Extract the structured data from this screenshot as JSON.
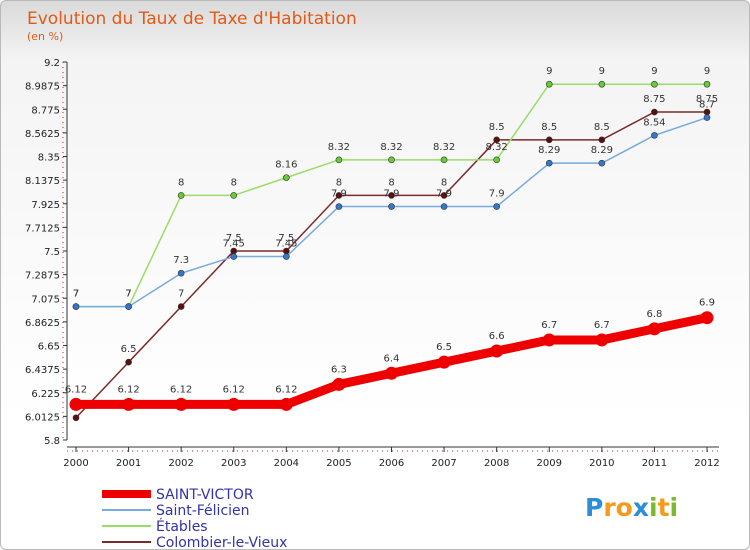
{
  "chart_data": {
    "type": "line",
    "title": "Evolution du Taux de Taxe d'Habitation",
    "subtitle": "(en %)",
    "xlabel": "",
    "ylabel": "",
    "x": [
      "2000",
      "2001",
      "2002",
      "2003",
      "2004",
      "2005",
      "2006",
      "2007",
      "2008",
      "2009",
      "2010",
      "2011",
      "2012"
    ],
    "y_ticks": [
      "5.8",
      "6.0125",
      "6.225",
      "6.4375",
      "6.65",
      "6.8625",
      "7.075",
      "7.2875",
      "7.5",
      "7.7125",
      "7.925",
      "8.1375",
      "8.35",
      "8.5625",
      "8.775",
      "8.9875",
      "9.2"
    ],
    "ylim": [
      5.8,
      9.2
    ],
    "grid": false,
    "legend_position": "bottom-left",
    "series": [
      {
        "name": "Colombier-le-Vieux",
        "color": "#7b2a2a",
        "marker_color": "#5a0f0f",
        "values": [
          6.0,
          6.5,
          7.0,
          7.5,
          7.5,
          8.0,
          8.0,
          8.0,
          8.5,
          8.5,
          8.5,
          8.75,
          8.75
        ],
        "labels": [
          "",
          "6.5",
          "7",
          "7.5",
          "7.5",
          "8",
          "8",
          "8",
          "8.5",
          "8.5",
          "8.5",
          "8.75",
          "8.75"
        ]
      },
      {
        "name": "Étables",
        "color": "#99dd66",
        "marker_color": "#66cc33",
        "values": [
          7.0,
          7.0,
          8.0,
          8.0,
          8.16,
          8.32,
          8.32,
          8.32,
          8.32,
          9.0,
          9.0,
          9.0,
          9.0
        ],
        "labels": [
          "7",
          "7",
          "8",
          "8",
          "8.16",
          "8.32",
          "8.32",
          "8.32",
          "8.32",
          "9",
          "9",
          "9",
          "9"
        ]
      },
      {
        "name": "Saint-Félicien",
        "color": "#77aadd",
        "marker_color": "#3377cc",
        "values": [
          7.0,
          7.0,
          7.3,
          7.45,
          7.45,
          7.9,
          7.9,
          7.9,
          7.9,
          8.29,
          8.29,
          8.54,
          8.7
        ],
        "labels": [
          "7",
          "7",
          "7.3",
          "7.45",
          "7.45",
          "7.9",
          "7.9",
          "7.9",
          "7.9",
          "8.29",
          "8.29",
          "8.54",
          "8.7"
        ]
      },
      {
        "name": "SAINT-VICTOR",
        "color": "#ee0000",
        "marker_color": "#ee0000",
        "values": [
          6.12,
          6.12,
          6.12,
          6.12,
          6.12,
          6.3,
          6.4,
          6.5,
          6.6,
          6.7,
          6.7,
          6.8,
          6.9
        ],
        "labels": [
          "6.12",
          "6.12",
          "6.12",
          "6.12",
          "6.12",
          "6.3",
          "6.4",
          "6.5",
          "6.6",
          "6.7",
          "6.7",
          "6.8",
          "6.9"
        ]
      }
    ],
    "legend": [
      "SAINT-VICTOR",
      "Saint-Félicien",
      "Étables",
      "Colombier-le-Vieux"
    ]
  },
  "logo": {
    "text": "Proxiti",
    "letters": [
      "P",
      "r",
      "o",
      "x",
      "i",
      "t",
      "i"
    ],
    "colors": [
      "#2a8fd8",
      "#f59a1b",
      "#f59a1b",
      "#2a8fd8",
      "#7ab929",
      "#f59a1b",
      "#7ab929"
    ]
  }
}
